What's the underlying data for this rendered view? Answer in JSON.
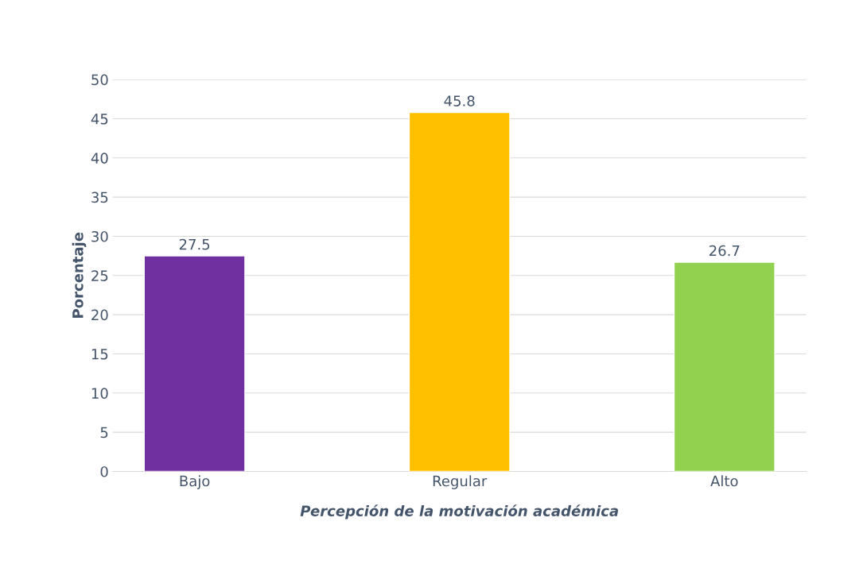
{
  "chart_data": {
    "type": "bar",
    "xlabel": "Percepción de la motivación académica",
    "ylabel": "Porcentaje",
    "categories": [
      "Bajo",
      "Regular",
      "Alto"
    ],
    "values": [
      27.5,
      45.8,
      26.7
    ],
    "colors": [
      "#7030a0",
      "#ffc000",
      "#92d050"
    ],
    "ylim": [
      0,
      50
    ],
    "yticks": [
      0,
      5,
      10,
      15,
      20,
      25,
      30,
      35,
      40,
      45,
      50
    ],
    "grid": "y",
    "data_labels": true
  }
}
